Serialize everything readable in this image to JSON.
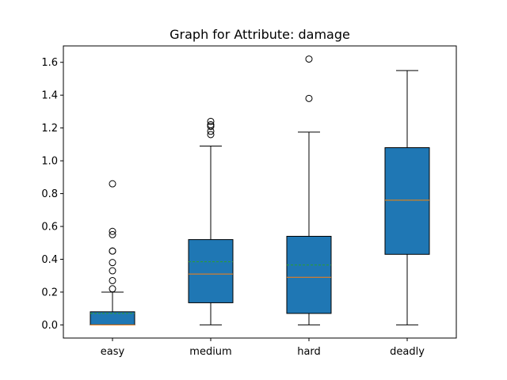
{
  "chart_data": {
    "type": "box",
    "title": "Graph for Attribute: damage",
    "xlabel": "",
    "ylabel": "",
    "ylim": [
      -0.08,
      1.7
    ],
    "yticks": [
      0.0,
      0.2,
      0.4,
      0.6,
      0.8,
      1.0,
      1.2,
      1.4,
      1.6
    ],
    "ytick_labels": [
      "0.0",
      "0.2",
      "0.4",
      "0.6",
      "0.8",
      "1.0",
      "1.2",
      "1.4",
      "1.6"
    ],
    "categories": [
      "easy",
      "medium",
      "hard",
      "deadly"
    ],
    "boxes": [
      {
        "category": "easy",
        "whislo": 0.0,
        "q1": 0.0,
        "median": 0.0,
        "mean": 0.07,
        "q3": 0.08,
        "whishi": 0.2,
        "fliers": [
          0.22,
          0.27,
          0.33,
          0.38,
          0.45,
          0.45,
          0.55,
          0.57,
          0.86
        ]
      },
      {
        "category": "medium",
        "whislo": 0.0,
        "q1": 0.135,
        "median": 0.31,
        "mean": 0.385,
        "q3": 0.52,
        "whishi": 1.09,
        "fliers": [
          1.16,
          1.18,
          1.21,
          1.22,
          1.24
        ]
      },
      {
        "category": "hard",
        "whislo": 0.0,
        "q1": 0.07,
        "median": 0.29,
        "mean": 0.365,
        "q3": 0.54,
        "whishi": 1.175,
        "fliers": [
          1.38,
          1.62
        ]
      },
      {
        "category": "deadly",
        "whislo": 0.0,
        "q1": 0.43,
        "median": 0.76,
        "mean": 0.76,
        "q3": 1.08,
        "whishi": 1.55,
        "fliers": []
      }
    ],
    "grid": false,
    "legend": "none",
    "colors": {
      "box_fill": "#1f77b4",
      "median": "#ff7f0e",
      "mean": "#2ca02c",
      "line": "#000000"
    }
  }
}
